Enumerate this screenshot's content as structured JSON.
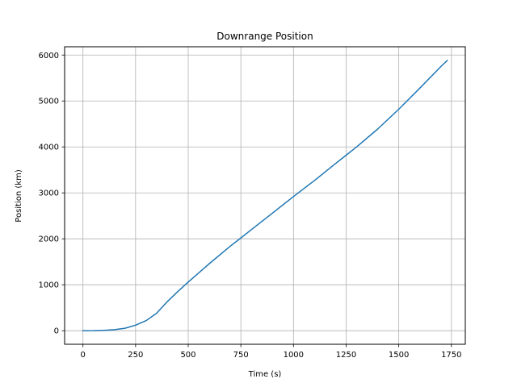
{
  "chart_data": {
    "type": "line",
    "title": "Downrange Position",
    "xlabel": "Time (s)",
    "ylabel": "Position (km)",
    "xlim": [
      -87,
      1816
    ],
    "ylim": [
      -295,
      6180
    ],
    "xticks": [
      0,
      250,
      500,
      750,
      1000,
      1250,
      1500,
      1750
    ],
    "yticks": [
      0,
      1000,
      2000,
      3000,
      4000,
      5000,
      6000
    ],
    "xtick_labels": [
      "0",
      "250",
      "500",
      "750",
      "1000",
      "1250",
      "1500",
      "1750"
    ],
    "ytick_labels": [
      "0",
      "1000",
      "2000",
      "3000",
      "4000",
      "5000",
      "6000"
    ],
    "grid": true,
    "series": [
      {
        "color": "#1f77b4",
        "x": [
          0,
          50,
          100,
          150,
          200,
          250,
          300,
          350,
          400,
          450,
          500,
          600,
          700,
          750,
          800,
          900,
          1000,
          1100,
          1200,
          1250,
          1300,
          1400,
          1500,
          1600,
          1700,
          1730
        ],
        "y": [
          0,
          2,
          8,
          22,
          55,
          120,
          220,
          380,
          630,
          850,
          1060,
          1460,
          1840,
          2020,
          2200,
          2560,
          2920,
          3270,
          3640,
          3820,
          4000,
          4390,
          4820,
          5280,
          5750,
          5880
        ]
      }
    ]
  }
}
